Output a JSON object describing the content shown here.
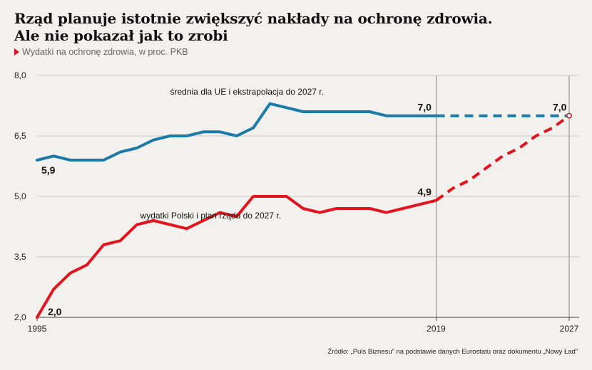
{
  "title_line1": "Rząd planuje istotnie zwiększyć nakłady na ochronę zdrowia.",
  "title_line2": "Ale nie pokazał jak to zrobi",
  "subtitle": "Wydatki  na ochronę zdrowia, w proc. PKB",
  "source": "Źródło: „Puls Biznesu” na podstawie danych Eurostatu oraz dokumentu „Nowy Ład”",
  "colors": {
    "eu": "#1a7aa8",
    "poland": "#e3141e",
    "grid": "#c9c9c9",
    "marker": "#888888"
  },
  "chart_data": {
    "type": "line",
    "y_ticks": [
      "8,0",
      "6,5",
      "5,0",
      "3,5",
      "2,0"
    ],
    "x_ticks": [
      "1995",
      "2019",
      "2027"
    ],
    "ylim": [
      2.0,
      8.0
    ],
    "xlim": [
      1995,
      2027
    ],
    "grid": "horizontal",
    "series": [
      {
        "key": "eu",
        "name": "średnia dla UE i ekstrapolacja do 2027 r.",
        "x": [
          1995,
          1996,
          1997,
          1998,
          1999,
          2000,
          2001,
          2002,
          2003,
          2004,
          2005,
          2006,
          2007,
          2008,
          2009,
          2010,
          2011,
          2012,
          2013,
          2014,
          2015,
          2016,
          2017,
          2018,
          2019
        ],
        "y": [
          5.9,
          6.0,
          5.9,
          5.9,
          5.9,
          6.1,
          6.2,
          6.4,
          6.5,
          6.5,
          6.6,
          6.6,
          6.5,
          6.7,
          7.3,
          7.2,
          7.1,
          7.1,
          7.1,
          7.1,
          7.1,
          7.0,
          7.0,
          7.0,
          7.0
        ],
        "projection_x": [
          2019,
          2027
        ],
        "projection_y": [
          7.0,
          7.0
        ]
      },
      {
        "key": "poland",
        "name": "wydatki Polski i plan rządu do 2027 r.",
        "x": [
          1995,
          1996,
          1997,
          1998,
          1999,
          2000,
          2001,
          2002,
          2003,
          2004,
          2005,
          2006,
          2007,
          2008,
          2009,
          2010,
          2011,
          2012,
          2013,
          2014,
          2015,
          2016,
          2017,
          2018,
          2019
        ],
        "y": [
          2.0,
          2.7,
          3.1,
          3.3,
          3.8,
          3.9,
          4.3,
          4.4,
          4.3,
          4.2,
          4.4,
          4.6,
          4.5,
          5.0,
          5.0,
          5.0,
          4.7,
          4.6,
          4.7,
          4.7,
          4.7,
          4.6,
          4.7,
          4.8,
          4.9
        ],
        "projection_x": [
          2019,
          2020,
          2021,
          2022,
          2023,
          2024,
          2025,
          2026,
          2027
        ],
        "projection_y": [
          4.9,
          5.2,
          5.4,
          5.7,
          6.0,
          6.2,
          6.5,
          6.7,
          7.0
        ]
      }
    ],
    "annotations": [
      {
        "text": "5,9",
        "x": 1995,
        "y": 5.9,
        "series": "eu"
      },
      {
        "text": "7,0",
        "x": 2019,
        "y": 7.0,
        "series": "eu"
      },
      {
        "text": "7,0",
        "x": 2027,
        "y": 7.0,
        "series": "eu"
      },
      {
        "text": "2,0",
        "x": 1995,
        "y": 2.0,
        "series": "poland"
      },
      {
        "text": "4,9",
        "x": 2019,
        "y": 4.9,
        "series": "poland"
      }
    ]
  }
}
